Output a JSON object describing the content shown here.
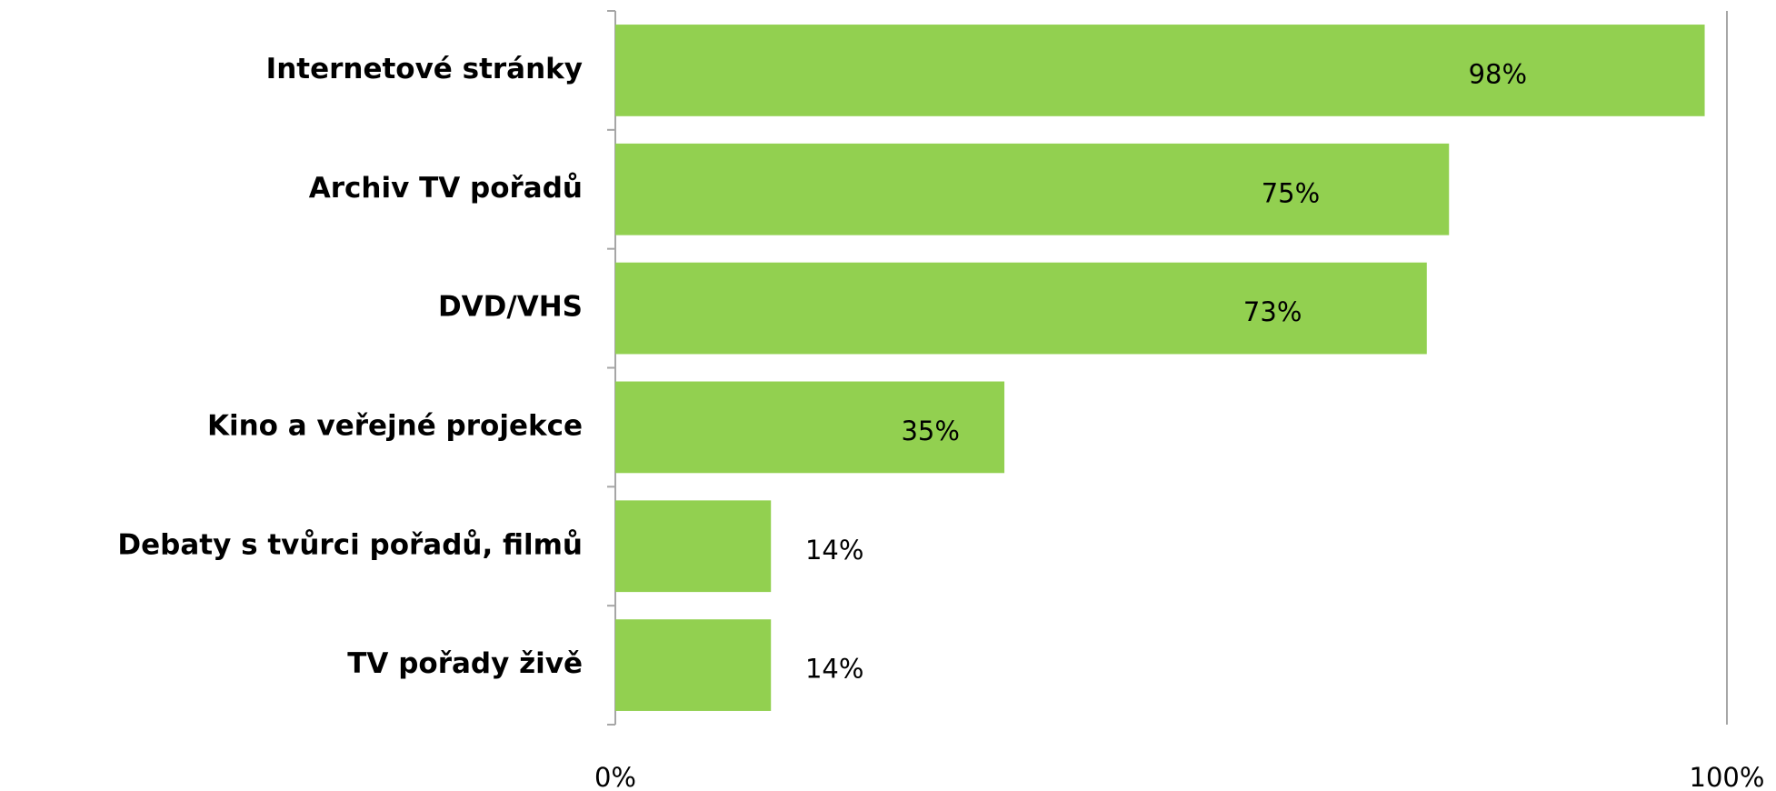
{
  "chart_data": {
    "type": "bar",
    "orientation": "horizontal",
    "categories": [
      "Internetové stránky",
      "Archiv TV pořadů",
      "DVD/VHS",
      "Kino a veřejné projekce",
      "Debaty s tvůrci pořadů, filmů",
      "TV pořady živě"
    ],
    "values": [
      98,
      75,
      73,
      35,
      14,
      14
    ],
    "value_labels": [
      "98%",
      "75%",
      "73%",
      "35%",
      "14%",
      "14%"
    ],
    "color": "#92d050",
    "xlim": [
      0,
      100
    ],
    "xticks": [
      {
        "value": 0,
        "label": "0%"
      },
      {
        "value": 100,
        "label": "100%"
      }
    ]
  }
}
